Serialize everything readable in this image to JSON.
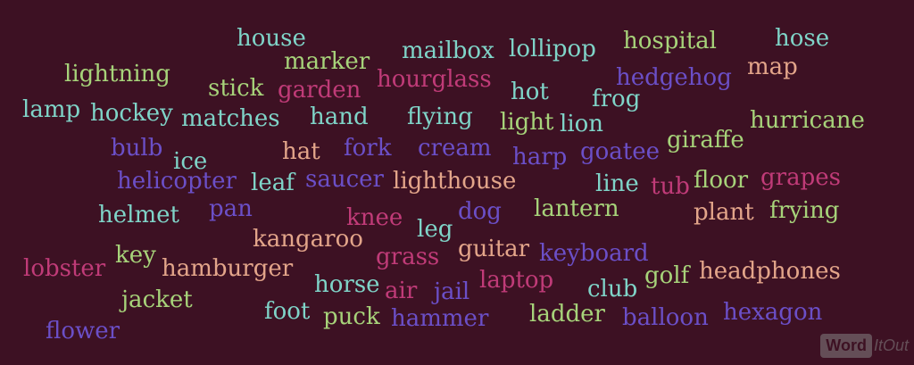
{
  "colors": {
    "background": "#3d1123",
    "teal": "#7fd4c8",
    "green": "#a7d37a",
    "purple": "#6b4fc7",
    "pink": "#c03b78",
    "peach": "#e3a58a"
  },
  "words": [
    {
      "text": "house",
      "color": "teal"
    },
    {
      "text": "marker",
      "color": "green"
    },
    {
      "text": "mailbox",
      "color": "teal"
    },
    {
      "text": "lollipop",
      "color": "teal"
    },
    {
      "text": "hospital",
      "color": "green"
    },
    {
      "text": "hose",
      "color": "teal"
    },
    {
      "text": "lightning",
      "color": "green"
    },
    {
      "text": "hourglass",
      "color": "pink"
    },
    {
      "text": "hedgehog",
      "color": "purple"
    },
    {
      "text": "map",
      "color": "peach"
    },
    {
      "text": "stick",
      "color": "green"
    },
    {
      "text": "garden",
      "color": "pink"
    },
    {
      "text": "hot",
      "color": "teal"
    },
    {
      "text": "frog",
      "color": "teal"
    },
    {
      "text": "lamp",
      "color": "teal"
    },
    {
      "text": "hockey",
      "color": "teal"
    },
    {
      "text": "matches",
      "color": "teal"
    },
    {
      "text": "hand",
      "color": "teal"
    },
    {
      "text": "flying",
      "color": "teal"
    },
    {
      "text": "light",
      "color": "green"
    },
    {
      "text": "lion",
      "color": "teal"
    },
    {
      "text": "hurricane",
      "color": "green"
    },
    {
      "text": "bulb",
      "color": "purple"
    },
    {
      "text": "hat",
      "color": "peach"
    },
    {
      "text": "fork",
      "color": "purple"
    },
    {
      "text": "cream",
      "color": "purple"
    },
    {
      "text": "harp",
      "color": "purple"
    },
    {
      "text": "goatee",
      "color": "purple"
    },
    {
      "text": "giraffe",
      "color": "green"
    },
    {
      "text": "ice",
      "color": "teal"
    },
    {
      "text": "helicopter",
      "color": "purple"
    },
    {
      "text": "leaf",
      "color": "teal"
    },
    {
      "text": "saucer",
      "color": "purple"
    },
    {
      "text": "lighthouse",
      "color": "peach"
    },
    {
      "text": "line",
      "color": "teal"
    },
    {
      "text": "tub",
      "color": "pink"
    },
    {
      "text": "floor",
      "color": "green"
    },
    {
      "text": "grapes",
      "color": "pink"
    },
    {
      "text": "helmet",
      "color": "teal"
    },
    {
      "text": "pan",
      "color": "purple"
    },
    {
      "text": "knee",
      "color": "pink"
    },
    {
      "text": "dog",
      "color": "purple"
    },
    {
      "text": "lantern",
      "color": "green"
    },
    {
      "text": "plant",
      "color": "peach"
    },
    {
      "text": "frying",
      "color": "green"
    },
    {
      "text": "kangaroo",
      "color": "peach"
    },
    {
      "text": "leg",
      "color": "teal"
    },
    {
      "text": "guitar",
      "color": "peach"
    },
    {
      "text": "keyboard",
      "color": "purple"
    },
    {
      "text": "lobster",
      "color": "pink"
    },
    {
      "text": "key",
      "color": "green"
    },
    {
      "text": "hamburger",
      "color": "peach"
    },
    {
      "text": "grass",
      "color": "pink"
    },
    {
      "text": "golf",
      "color": "green"
    },
    {
      "text": "headphones",
      "color": "peach"
    },
    {
      "text": "horse",
      "color": "teal"
    },
    {
      "text": "air",
      "color": "pink"
    },
    {
      "text": "jail",
      "color": "purple"
    },
    {
      "text": "laptop",
      "color": "pink"
    },
    {
      "text": "club",
      "color": "teal"
    },
    {
      "text": "jacket",
      "color": "green"
    },
    {
      "text": "foot",
      "color": "teal"
    },
    {
      "text": "puck",
      "color": "green"
    },
    {
      "text": "hammer",
      "color": "purple"
    },
    {
      "text": "ladder",
      "color": "green"
    },
    {
      "text": "balloon",
      "color": "purple"
    },
    {
      "text": "hexagon",
      "color": "purple"
    },
    {
      "text": "flower",
      "color": "purple"
    }
  ],
  "watermark": {
    "word": "Word",
    "it": "It",
    "out": "Out"
  }
}
